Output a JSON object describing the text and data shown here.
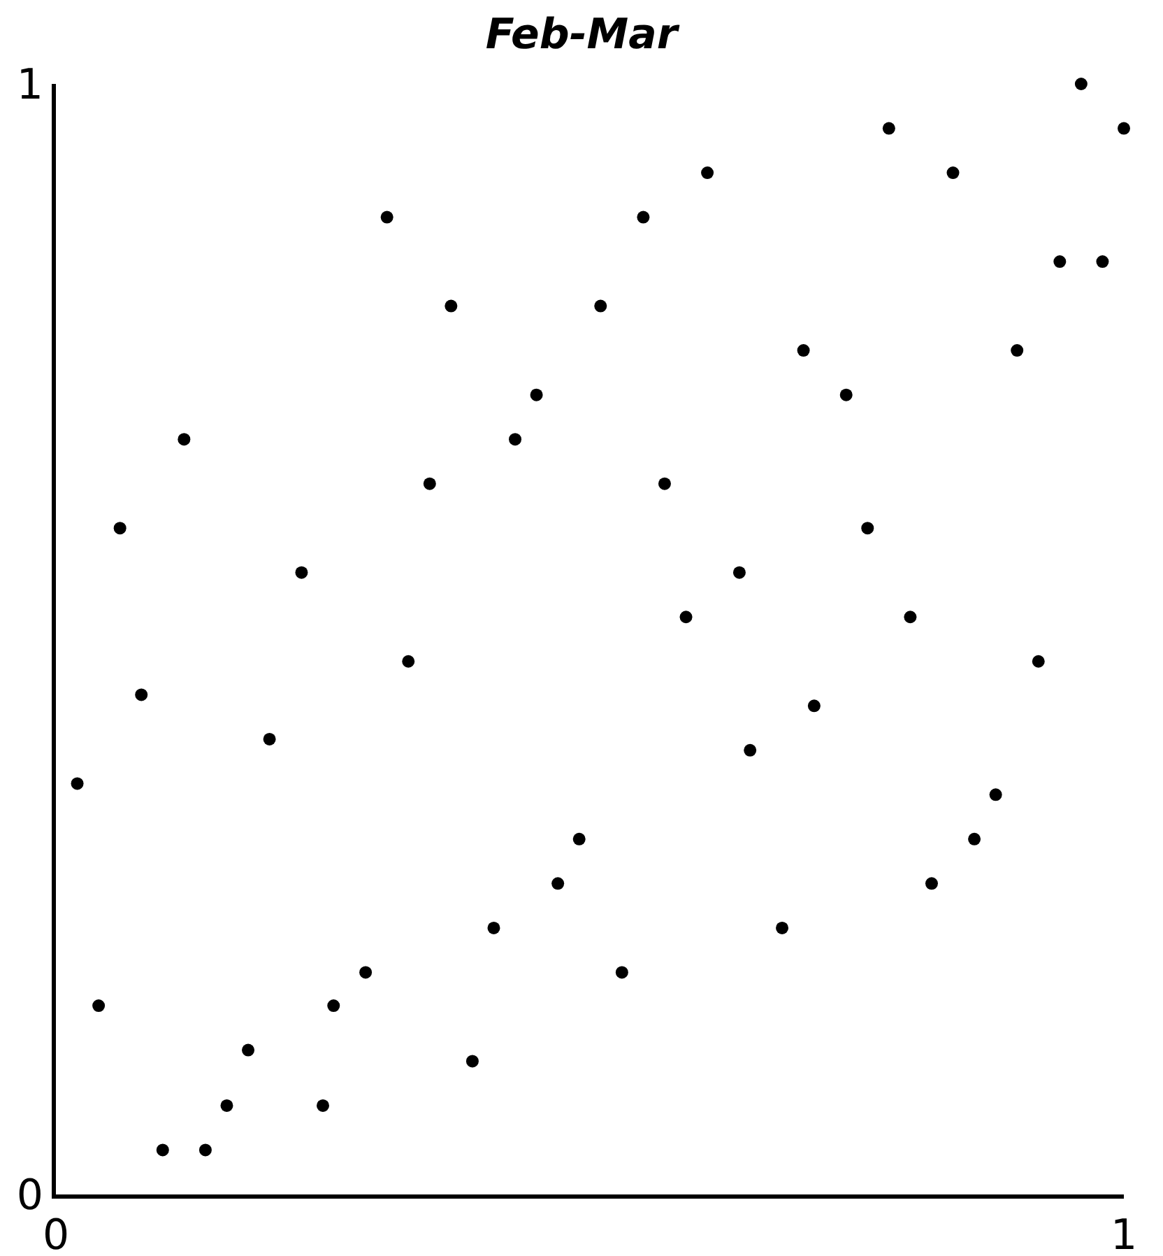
{
  "chart_data": {
    "type": "scatter",
    "title": "Feb-Mar",
    "x": [
      0.02,
      0.04,
      0.06,
      0.08,
      0.1,
      0.12,
      0.14,
      0.16,
      0.18,
      0.2,
      0.23,
      0.25,
      0.26,
      0.29,
      0.31,
      0.33,
      0.35,
      0.37,
      0.39,
      0.41,
      0.43,
      0.45,
      0.47,
      0.49,
      0.51,
      0.53,
      0.55,
      0.57,
      0.59,
      0.61,
      0.64,
      0.65,
      0.68,
      0.7,
      0.71,
      0.74,
      0.76,
      0.78,
      0.8,
      0.82,
      0.84,
      0.86,
      0.88,
      0.9,
      0.92,
      0.94,
      0.96,
      0.98,
      1.0
    ],
    "values": [
      0.37,
      0.17,
      0.6,
      0.45,
      0.04,
      0.68,
      0.04,
      0.08,
      0.13,
      0.41,
      0.56,
      0.08,
      0.17,
      0.2,
      0.88,
      0.48,
      0.64,
      0.8,
      0.12,
      0.24,
      0.68,
      0.72,
      0.28,
      0.32,
      0.8,
      0.2,
      0.88,
      0.64,
      0.52,
      0.92,
      0.56,
      0.4,
      0.24,
      0.76,
      0.44,
      0.72,
      0.6,
      0.96,
      0.52,
      0.28,
      0.92,
      0.32,
      0.36,
      0.76,
      0.48,
      0.84,
      1.0,
      0.84,
      0.96
    ],
    "color": "#000000",
    "marker": "circle",
    "xlim": [
      0,
      1
    ],
    "ylim": [
      0,
      1
    ],
    "xticks": [
      0,
      1
    ],
    "yticks": [
      0,
      1
    ]
  }
}
